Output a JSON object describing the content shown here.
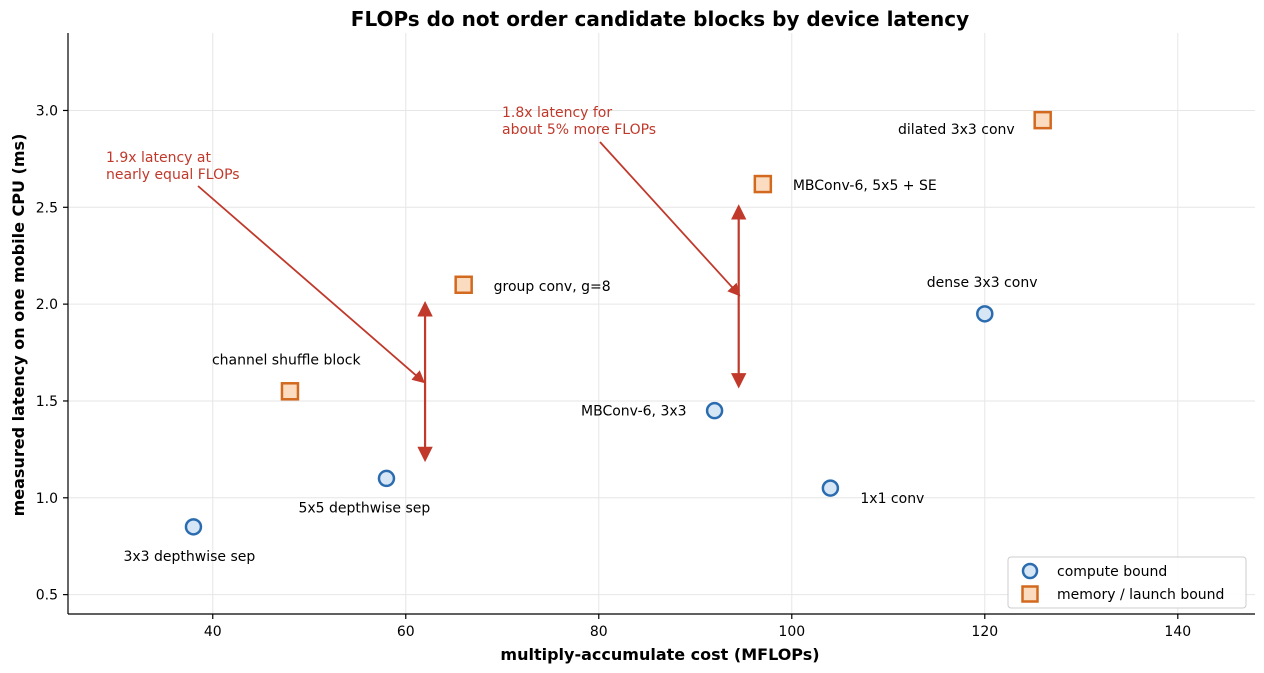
{
  "chart_data": {
    "type": "scatter",
    "title": "FLOPs do not order candidate blocks by device latency",
    "xlabel": "multiply-accumulate cost (MFLOPs)",
    "ylabel": "measured latency on one mobile CPU (ms)",
    "xlim": [
      25,
      148
    ],
    "ylim": [
      0.4,
      3.4
    ],
    "xticks": [
      40,
      60,
      80,
      100,
      120,
      140
    ],
    "yticks": [
      0.5,
      1.0,
      1.5,
      2.0,
      2.5,
      3.0
    ],
    "xtick_labels": [
      "40",
      "60",
      "80",
      "100",
      "120",
      "140"
    ],
    "ytick_labels": [
      "0.5",
      "1.0",
      "1.5",
      "2.0",
      "2.5",
      "3.0"
    ],
    "grid": true,
    "legend_position": "bottom-right",
    "series": [
      {
        "name": "compute bound",
        "marker": "circle",
        "edge_color": "#2b6cb0",
        "fill_color": "#d6e6f5",
        "points": [
          {
            "label": "3x3 depthwise sep",
            "x": 38,
            "y": 0.85
          },
          {
            "label": "5x5 depthwise sep",
            "x": 58,
            "y": 1.1
          },
          {
            "label": "MBConv-6, 3x3",
            "x": 92,
            "y": 1.45
          },
          {
            "label": "1x1 conv",
            "x": 104,
            "y": 1.05
          },
          {
            "label": "dense 3x3 conv",
            "x": 120,
            "y": 1.95
          }
        ]
      },
      {
        "name": "memory / launch bound",
        "marker": "square",
        "edge_color": "#d2691e",
        "fill_color": "#fbdcc0",
        "points": [
          {
            "label": "channel shuffle block",
            "x": 48,
            "y": 1.55
          },
          {
            "label": "group conv, g=8",
            "x": 66,
            "y": 2.1
          },
          {
            "label": "MBConv-6, 5x5 + SE",
            "x": 97,
            "y": 2.62
          },
          {
            "label": "dilated 3x3 conv",
            "x": 126,
            "y": 2.95
          }
        ]
      }
    ],
    "annotations": [
      {
        "text_lines": [
          "1.9x latency at",
          "nearly equal FLOPs"
        ],
        "color": "#c0392b",
        "range_x": 62,
        "range_y": [
          1.2,
          2.0
        ],
        "target": [
          61.8,
          1.6
        ]
      },
      {
        "text_lines": [
          "1.8x latency for",
          "about 5% more FLOPs"
        ],
        "color": "#c0392b",
        "range_x": 94.5,
        "range_y": [
          1.58,
          2.5
        ],
        "target": [
          94.5,
          2.05
        ]
      }
    ]
  }
}
